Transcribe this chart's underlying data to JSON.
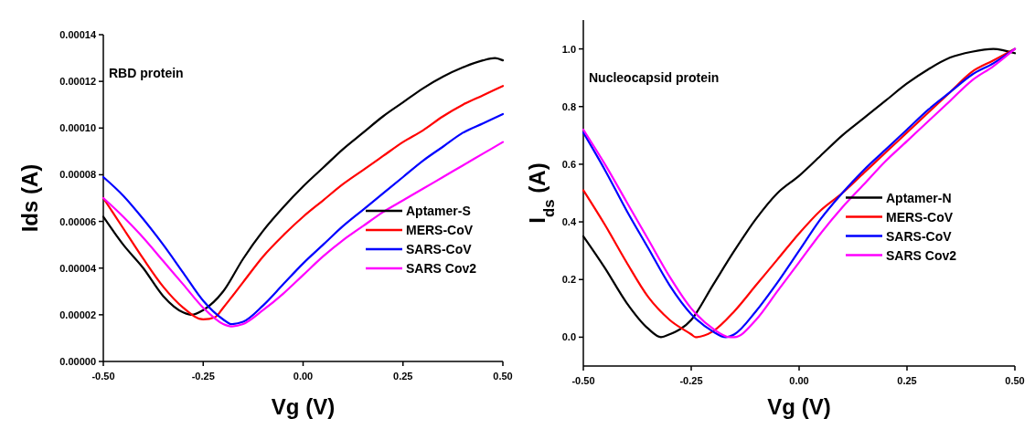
{
  "chart_data": [
    {
      "type": "line",
      "xlabel": "Vg (V)",
      "ylabel": "Ids (A)",
      "annotations": [
        "RBD protein"
      ],
      "xlim": [
        -0.5,
        0.5
      ],
      "xticks": [
        {
          "value": -0.5,
          "label": "-0.50"
        },
        {
          "value": -0.25,
          "label": "-0.25"
        },
        {
          "value": 0,
          "label": "0.00"
        },
        {
          "value": 0.25,
          "label": "0.25"
        },
        {
          "value": 0.5,
          "label": "0.50"
        }
      ],
      "ylim": [
        0,
        0.00014
      ],
      "yticks": [
        {
          "value": 0,
          "label": "0.00000"
        },
        {
          "value": 2e-05,
          "label": "0.00002"
        },
        {
          "value": 4e-05,
          "label": "0.00004"
        },
        {
          "value": 6e-05,
          "label": "0.00006"
        },
        {
          "value": 8e-05,
          "label": "0.00008"
        },
        {
          "value": 0.0001,
          "label": "0.00010"
        },
        {
          "value": 0.00012,
          "label": "0.00012"
        },
        {
          "value": 0.00014,
          "label": "0.00014"
        }
      ],
      "grid": false,
      "legend": "bottom right",
      "line_style": "solid",
      "marker": "none",
      "series": [
        {
          "name": "Aptamer-S",
          "color": "#000000",
          "x": [
            -0.5,
            -0.45,
            -0.4,
            -0.35,
            -0.3,
            -0.28,
            -0.25,
            -0.2,
            -0.15,
            -0.1,
            -0.05,
            0,
            0.05,
            0.1,
            0.15,
            0.2,
            0.25,
            0.3,
            0.35,
            0.4,
            0.45,
            0.48,
            0.5
          ],
          "values": [
            6.2e-05,
            5e-05,
            4e-05,
            2.8e-05,
            2.1e-05,
            2e-05,
            2.2e-05,
            3e-05,
            4.4e-05,
            5.6e-05,
            6.6e-05,
            7.5e-05,
            8.3e-05,
            9.1e-05,
            9.8e-05,
            0.000105,
            0.000111,
            0.000117,
            0.000122,
            0.000126,
            0.000129,
            0.00013,
            0.000129
          ]
        },
        {
          "name": "MERS-CoV",
          "color": "#ff0000",
          "x": [
            -0.5,
            -0.45,
            -0.4,
            -0.35,
            -0.3,
            -0.25,
            -0.22,
            -0.2,
            -0.15,
            -0.1,
            -0.05,
            0,
            0.05,
            0.1,
            0.15,
            0.2,
            0.25,
            0.3,
            0.35,
            0.4,
            0.45,
            0.5
          ],
          "values": [
            7e-05,
            5.7e-05,
            4.4e-05,
            3.2e-05,
            2.3e-05,
            1.8e-05,
            1.9e-05,
            2.3e-05,
            3.4e-05,
            4.5e-05,
            5.4e-05,
            6.2e-05,
            6.9e-05,
            7.6e-05,
            8.2e-05,
            8.8e-05,
            9.4e-05,
            9.9e-05,
            0.000105,
            0.00011,
            0.000114,
            0.000118
          ]
        },
        {
          "name": "SARS-CoV",
          "color": "#0000ff",
          "x": [
            -0.5,
            -0.45,
            -0.4,
            -0.35,
            -0.3,
            -0.25,
            -0.2,
            -0.18,
            -0.15,
            -0.1,
            -0.05,
            0,
            0.05,
            0.1,
            0.15,
            0.2,
            0.25,
            0.3,
            0.35,
            0.4,
            0.45,
            0.5
          ],
          "values": [
            7.9e-05,
            7.1e-05,
            6.1e-05,
            5e-05,
            3.8e-05,
            2.6e-05,
            1.8e-05,
            1.6e-05,
            1.7e-05,
            2.4e-05,
            3.3e-05,
            4.2e-05,
            5e-05,
            5.8e-05,
            6.5e-05,
            7.2e-05,
            7.9e-05,
            8.6e-05,
            9.2e-05,
            9.8e-05,
            0.000102,
            0.000106
          ]
        },
        {
          "name": "SARS Cov2",
          "color": "#ff00ff",
          "x": [
            -0.5,
            -0.45,
            -0.4,
            -0.35,
            -0.3,
            -0.25,
            -0.2,
            -0.18,
            -0.15,
            -0.1,
            -0.05,
            0,
            0.05,
            0.1,
            0.15,
            0.2,
            0.25,
            0.3,
            0.35,
            0.4,
            0.45,
            0.5
          ],
          "values": [
            7e-05,
            6.2e-05,
            5.3e-05,
            4.3e-05,
            3.3e-05,
            2.3e-05,
            1.6e-05,
            1.5e-05,
            1.6e-05,
            2.2e-05,
            2.9e-05,
            3.7e-05,
            4.5e-05,
            5.2e-05,
            5.8e-05,
            6.4e-05,
            6.9e-05,
            7.4e-05,
            7.9e-05,
            8.4e-05,
            8.9e-05,
            9.4e-05
          ]
        }
      ]
    },
    {
      "type": "line",
      "xlabel": "Vg (V)",
      "ylabel": "I$_{ds}$ (A)",
      "annotations": [
        "Nucleocapsid protein"
      ],
      "xlim": [
        -0.5,
        0.5
      ],
      "xticks": [
        {
          "value": -0.5,
          "label": "-0.50"
        },
        {
          "value": -0.25,
          "label": "-0.25"
        },
        {
          "value": 0,
          "label": "0.00"
        },
        {
          "value": 0.25,
          "label": "0.25"
        },
        {
          "value": 0.5,
          "label": "0.50"
        }
      ],
      "ylim": [
        -0.1,
        1.1
      ],
      "yticks": [
        {
          "value": 0,
          "label": "0.0"
        },
        {
          "value": 0.2,
          "label": "0.2"
        },
        {
          "value": 0.4,
          "label": "0.4"
        },
        {
          "value": 0.6,
          "label": "0.6"
        },
        {
          "value": 0.8,
          "label": "0.8"
        },
        {
          "value": 1,
          "label": "1.0"
        }
      ],
      "grid": false,
      "legend": "right",
      "line_style": "solid",
      "marker": "none",
      "series": [
        {
          "name": "Aptamer-N",
          "color": "#000000",
          "x": [
            -0.5,
            -0.45,
            -0.4,
            -0.35,
            -0.32,
            -0.3,
            -0.25,
            -0.2,
            -0.15,
            -0.1,
            -0.05,
            0,
            0.05,
            0.1,
            0.15,
            0.2,
            0.25,
            0.3,
            0.35,
            0.4,
            0.45,
            0.5
          ],
          "values": [
            0.35,
            0.24,
            0.12,
            0.03,
            0.0,
            0.01,
            0.06,
            0.18,
            0.3,
            0.41,
            0.5,
            0.56,
            0.63,
            0.7,
            0.76,
            0.82,
            0.88,
            0.93,
            0.97,
            0.99,
            1.0,
            0.985
          ]
        },
        {
          "name": "MERS-CoV",
          "color": "#ff0000",
          "x": [
            -0.5,
            -0.45,
            -0.4,
            -0.35,
            -0.3,
            -0.25,
            -0.24,
            -0.2,
            -0.15,
            -0.1,
            -0.05,
            0,
            0.05,
            0.1,
            0.15,
            0.2,
            0.25,
            0.3,
            0.35,
            0.4,
            0.45,
            0.5
          ],
          "values": [
            0.51,
            0.39,
            0.26,
            0.14,
            0.06,
            0.01,
            0.0,
            0.02,
            0.09,
            0.18,
            0.27,
            0.36,
            0.44,
            0.5,
            0.57,
            0.64,
            0.71,
            0.78,
            0.85,
            0.92,
            0.96,
            1.0
          ]
        },
        {
          "name": "SARS-CoV",
          "color": "#0000ff",
          "x": [
            -0.5,
            -0.45,
            -0.4,
            -0.35,
            -0.3,
            -0.25,
            -0.2,
            -0.17,
            -0.15,
            -0.1,
            -0.05,
            0,
            0.05,
            0.1,
            0.15,
            0.2,
            0.25,
            0.3,
            0.35,
            0.4,
            0.45,
            0.5
          ],
          "values": [
            0.71,
            0.58,
            0.44,
            0.31,
            0.18,
            0.08,
            0.02,
            0.0,
            0.01,
            0.09,
            0.19,
            0.3,
            0.41,
            0.5,
            0.58,
            0.65,
            0.72,
            0.79,
            0.85,
            0.91,
            0.95,
            1.0
          ]
        },
        {
          "name": "SARS Cov2",
          "color": "#ff00ff",
          "x": [
            -0.5,
            -0.45,
            -0.4,
            -0.35,
            -0.3,
            -0.25,
            -0.2,
            -0.16,
            -0.15,
            -0.1,
            -0.05,
            0,
            0.05,
            0.1,
            0.15,
            0.2,
            0.25,
            0.3,
            0.35,
            0.4,
            0.45,
            0.5
          ],
          "values": [
            0.72,
            0.6,
            0.47,
            0.34,
            0.21,
            0.1,
            0.03,
            0.0,
            0.0,
            0.06,
            0.16,
            0.26,
            0.36,
            0.45,
            0.53,
            0.61,
            0.68,
            0.75,
            0.82,
            0.89,
            0.94,
            1.0
          ]
        }
      ]
    }
  ]
}
